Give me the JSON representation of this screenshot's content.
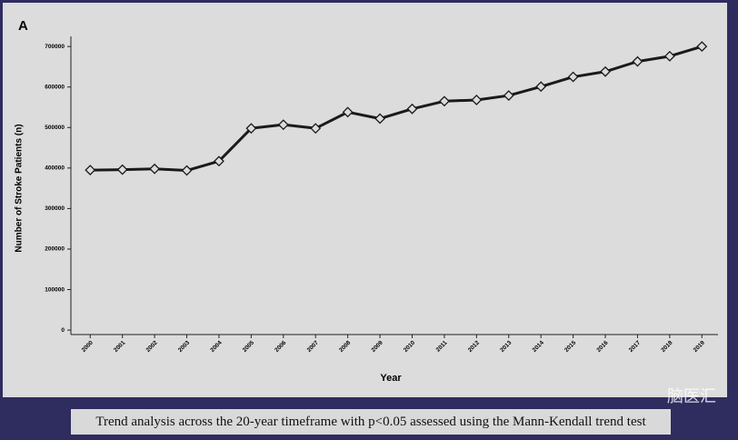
{
  "chart_data": {
    "type": "line",
    "panel_label": "A",
    "xlabel": "Year",
    "ylabel": "Number of Stroke Patients  (n)",
    "x": [
      2000,
      2001,
      2002,
      2003,
      2004,
      2005,
      2006,
      2007,
      2008,
      2009,
      2010,
      2011,
      2012,
      2013,
      2014,
      2015,
      2016,
      2017,
      2018,
      2019
    ],
    "values": [
      395000,
      396000,
      398000,
      394000,
      417000,
      498000,
      507000,
      498000,
      538000,
      522000,
      546000,
      565000,
      568000,
      579000,
      601000,
      625000,
      638000,
      663000,
      676000,
      700000
    ],
    "color": "#1a1a1a",
    "xlim": [
      1999.4,
      2019.5
    ],
    "xticks": [
      2000,
      2001,
      2002,
      2003,
      2004,
      2005,
      2006,
      2007,
      2008,
      2009,
      2010,
      2011,
      2012,
      2013,
      2014,
      2015,
      2016,
      2017,
      2018,
      2019
    ],
    "ylim": [
      -11000,
      725000
    ],
    "yticks": [
      0,
      100000,
      200000,
      300000,
      400000,
      500000,
      600000,
      700000
    ],
    "grid": false
  },
  "caption": "Trend analysis across the 20-year timeframe with p<0.05 assessed using the Mann-Kendall trend test",
  "watermark": "脑医汇"
}
